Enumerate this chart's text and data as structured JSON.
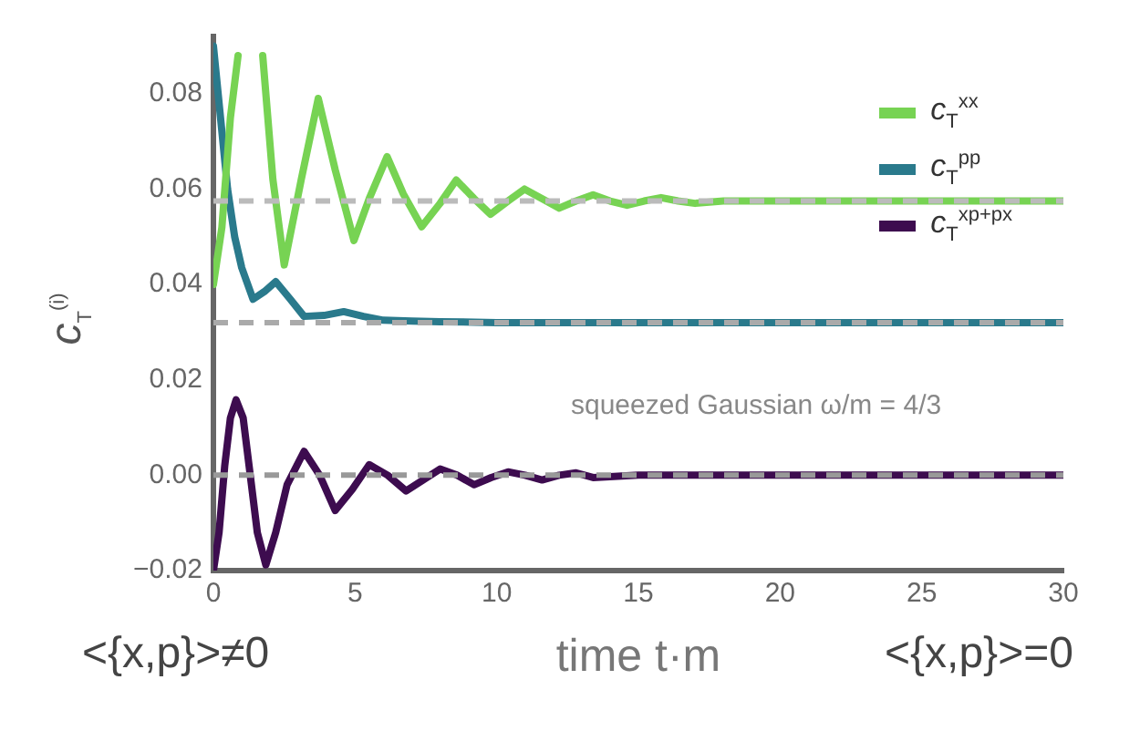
{
  "chart_data": {
    "type": "line",
    "xlabel": "time t·m",
    "ylabel": "c$_{T}$$^{(i)}$",
    "xlim": [
      0,
      30
    ],
    "ylim": [
      -0.02,
      0.092
    ],
    "xticks": [
      0,
      5,
      10,
      15,
      20,
      25,
      30
    ],
    "yticks": [
      {
        "value": -0.02,
        "label": "−0.02"
      },
      {
        "value": 0,
        "label": "0.00"
      },
      {
        "value": 0.02,
        "label": "0.02"
      },
      {
        "value": 0.04,
        "label": "0.04"
      },
      {
        "value": 0.06,
        "label": "0.06"
      },
      {
        "value": 0.08,
        "label": "0.08"
      }
    ],
    "grid": false,
    "legend": "top right",
    "marker": "none",
    "line_style": "solid",
    "series": [
      {
        "name": "c$_{T}$$^{xx}$",
        "color": "#77d353",
        "x": [
          0,
          0.3,
          0.6,
          0.87,
          1.3,
          1.74,
          2.1,
          2.5,
          3.1,
          3.7,
          4.3,
          4.96,
          5.5,
          6.13,
          6.7,
          7.35,
          8.0,
          8.57,
          9.2,
          9.78,
          10.4,
          10.98,
          11.6,
          12.2,
          12.8,
          13.4,
          14.0,
          14.6,
          15.2,
          15.8,
          16.4,
          17.0,
          18.0,
          20,
          25,
          30
        ],
        "values": [
          0.04,
          0.052,
          0.075,
          0.088,
          null,
          0.088,
          0.062,
          0.0441,
          0.062,
          0.079,
          0.064,
          0.0492,
          0.058,
          0.0668,
          0.059,
          0.0521,
          0.057,
          0.0619,
          0.058,
          0.0547,
          0.0575,
          0.06,
          0.058,
          0.056,
          0.0575,
          0.0588,
          0.0575,
          0.0566,
          0.0575,
          0.0582,
          0.0575,
          0.057,
          0.0575,
          0.0575,
          0.0575,
          0.0575
        ]
      },
      {
        "name": "c$_{T}$$^{pp}$",
        "color": "#2a7a8c",
        "x": [
          0,
          0.25,
          0.5,
          0.75,
          1,
          1.4,
          1.8,
          2.2,
          2.7,
          3.2,
          3.9,
          4.6,
          5.3,
          6,
          7,
          8,
          10,
          15,
          20,
          25,
          30
        ],
        "values": [
          0.09,
          0.075,
          0.06,
          0.05,
          0.0435,
          0.0369,
          0.0385,
          0.0406,
          0.037,
          0.0333,
          0.0335,
          0.0343,
          0.0333,
          0.0325,
          0.0323,
          0.0322,
          0.032,
          0.032,
          0.032,
          0.032,
          0.032
        ]
      },
      {
        "name": "c$_{T}$$^{xp+px}$",
        "color": "#3d0c4f",
        "x": [
          0,
          0.2,
          0.4,
          0.6,
          0.8,
          1.05,
          1.3,
          1.55,
          1.85,
          2.2,
          2.6,
          3.2,
          3.75,
          4.3,
          4.9,
          5.5,
          6.15,
          6.8,
          7.4,
          8.0,
          8.6,
          9.2,
          9.8,
          10.4,
          11.0,
          11.6,
          12.2,
          12.8,
          13.4,
          15,
          20,
          25,
          30
        ],
        "values": [
          -0.02,
          -0.012,
          0.002,
          0.012,
          0.0158,
          0.012,
          0.0,
          -0.012,
          -0.0188,
          -0.012,
          -0.002,
          0.005,
          0.0,
          -0.0074,
          -0.003,
          0.0022,
          0.0,
          -0.0033,
          -0.001,
          0.0013,
          0.0,
          -0.002,
          -0.0005,
          0.0007,
          0.0,
          -0.001,
          0.0,
          0.0005,
          -0.0005,
          0.0,
          0.0,
          0.0,
          0.0
        ]
      }
    ],
    "ref_lines": [
      {
        "axis": "y",
        "value": 0.0575,
        "color": "#bbbbbb",
        "line_style": "dashed"
      },
      {
        "axis": "y",
        "value": 0.032,
        "color": "#aaaaaa",
        "line_style": "dashed"
      },
      {
        "axis": "y",
        "value": 0,
        "color": "#999999",
        "line_style": "dashed"
      }
    ],
    "annotations": [
      "<{x,p}>≠0",
      "<{x,p}>=0",
      "squeezed Gaussian ω/m = 4/3"
    ]
  }
}
